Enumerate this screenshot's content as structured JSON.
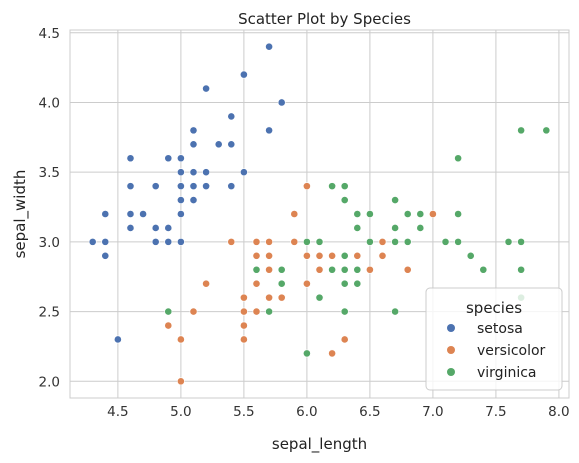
{
  "chart_data": {
    "type": "scatter",
    "title": "Scatter Plot by Species",
    "xlabel": "sepal_length",
    "ylabel": "sepal_width",
    "xlim": [
      4.12,
      8.08
    ],
    "ylim": [
      1.88,
      4.52
    ],
    "xticks": [
      "4.5",
      "5.0",
      "5.5",
      "6.0",
      "6.5",
      "7.0",
      "7.5",
      "8.0"
    ],
    "yticks": [
      "2.0",
      "2.5",
      "3.0",
      "3.5",
      "4.0",
      "4.5"
    ],
    "grid": true,
    "legend": {
      "title": "species",
      "placement": "lower-right"
    },
    "series": [
      {
        "name": "setosa",
        "color": "#4c72b0",
        "points": [
          [
            4.3,
            3.0
          ],
          [
            4.4,
            2.9
          ],
          [
            4.4,
            3.0
          ],
          [
            4.4,
            3.2
          ],
          [
            4.5,
            2.3
          ],
          [
            4.6,
            3.1
          ],
          [
            4.6,
            3.2
          ],
          [
            4.6,
            3.4
          ],
          [
            4.6,
            3.6
          ],
          [
            4.7,
            3.2
          ],
          [
            4.8,
            3.0
          ],
          [
            4.8,
            3.1
          ],
          [
            4.8,
            3.4
          ],
          [
            4.9,
            3.0
          ],
          [
            4.9,
            3.1
          ],
          [
            4.9,
            3.6
          ],
          [
            5.0,
            3.0
          ],
          [
            5.0,
            3.2
          ],
          [
            5.0,
            3.3
          ],
          [
            5.0,
            3.4
          ],
          [
            5.0,
            3.5
          ],
          [
            5.0,
            3.6
          ],
          [
            5.1,
            3.3
          ],
          [
            5.1,
            3.4
          ],
          [
            5.1,
            3.5
          ],
          [
            5.1,
            3.7
          ],
          [
            5.1,
            3.8
          ],
          [
            5.2,
            3.4
          ],
          [
            5.2,
            3.5
          ],
          [
            5.2,
            4.1
          ],
          [
            5.3,
            3.7
          ],
          [
            5.4,
            3.4
          ],
          [
            5.4,
            3.7
          ],
          [
            5.4,
            3.9
          ],
          [
            5.5,
            3.5
          ],
          [
            5.5,
            4.2
          ],
          [
            5.7,
            3.8
          ],
          [
            5.7,
            4.4
          ],
          [
            5.8,
            4.0
          ]
        ]
      },
      {
        "name": "versicolor",
        "color": "#dd8452",
        "points": [
          [
            4.9,
            2.4
          ],
          [
            5.0,
            2.0
          ],
          [
            5.0,
            2.3
          ],
          [
            5.1,
            2.5
          ],
          [
            5.2,
            2.7
          ],
          [
            5.4,
            3.0
          ],
          [
            5.5,
            2.3
          ],
          [
            5.5,
            2.4
          ],
          [
            5.5,
            2.5
          ],
          [
            5.5,
            2.6
          ],
          [
            5.6,
            2.5
          ],
          [
            5.6,
            2.7
          ],
          [
            5.6,
            2.9
          ],
          [
            5.6,
            3.0
          ],
          [
            5.7,
            2.6
          ],
          [
            5.7,
            2.8
          ],
          [
            5.7,
            2.9
          ],
          [
            5.7,
            3.0
          ],
          [
            5.8,
            2.6
          ],
          [
            5.8,
            2.7
          ],
          [
            5.9,
            3.0
          ],
          [
            5.9,
            3.2
          ],
          [
            6.0,
            2.2
          ],
          [
            6.0,
            2.7
          ],
          [
            6.0,
            2.9
          ],
          [
            6.0,
            3.4
          ],
          [
            6.1,
            2.8
          ],
          [
            6.1,
            2.9
          ],
          [
            6.1,
            3.0
          ],
          [
            6.2,
            2.2
          ],
          [
            6.2,
            2.9
          ],
          [
            6.3,
            2.3
          ],
          [
            6.3,
            2.5
          ],
          [
            6.3,
            3.3
          ],
          [
            6.4,
            2.9
          ],
          [
            6.4,
            3.2
          ],
          [
            6.5,
            2.8
          ],
          [
            6.6,
            2.9
          ],
          [
            6.6,
            3.0
          ],
          [
            6.7,
            3.0
          ],
          [
            6.7,
            3.1
          ],
          [
            6.8,
            2.8
          ],
          [
            6.9,
            3.1
          ],
          [
            7.0,
            3.2
          ]
        ]
      },
      {
        "name": "virginica",
        "color": "#55a868",
        "points": [
          [
            4.9,
            2.5
          ],
          [
            5.6,
            2.8
          ],
          [
            5.7,
            2.5
          ],
          [
            5.8,
            2.7
          ],
          [
            5.8,
            2.8
          ],
          [
            6.0,
            2.2
          ],
          [
            6.0,
            3.0
          ],
          [
            6.1,
            2.6
          ],
          [
            6.1,
            3.0
          ],
          [
            6.2,
            2.8
          ],
          [
            6.2,
            3.4
          ],
          [
            6.3,
            2.5
          ],
          [
            6.3,
            2.7
          ],
          [
            6.3,
            2.8
          ],
          [
            6.3,
            2.9
          ],
          [
            6.3,
            3.3
          ],
          [
            6.3,
            3.4
          ],
          [
            6.4,
            2.7
          ],
          [
            6.4,
            2.8
          ],
          [
            6.4,
            3.1
          ],
          [
            6.4,
            3.2
          ],
          [
            6.5,
            3.0
          ],
          [
            6.5,
            3.2
          ],
          [
            6.7,
            2.5
          ],
          [
            6.7,
            3.0
          ],
          [
            6.7,
            3.1
          ],
          [
            6.7,
            3.3
          ],
          [
            6.8,
            3.0
          ],
          [
            6.8,
            3.2
          ],
          [
            6.9,
            3.1
          ],
          [
            6.9,
            3.2
          ],
          [
            7.1,
            3.0
          ],
          [
            7.2,
            3.0
          ],
          [
            7.2,
            3.2
          ],
          [
            7.2,
            3.6
          ],
          [
            7.3,
            2.9
          ],
          [
            7.4,
            2.8
          ],
          [
            7.6,
            3.0
          ],
          [
            7.7,
            2.6
          ],
          [
            7.7,
            2.8
          ],
          [
            7.7,
            3.0
          ],
          [
            7.7,
            3.8
          ],
          [
            7.9,
            3.8
          ]
        ]
      }
    ]
  }
}
